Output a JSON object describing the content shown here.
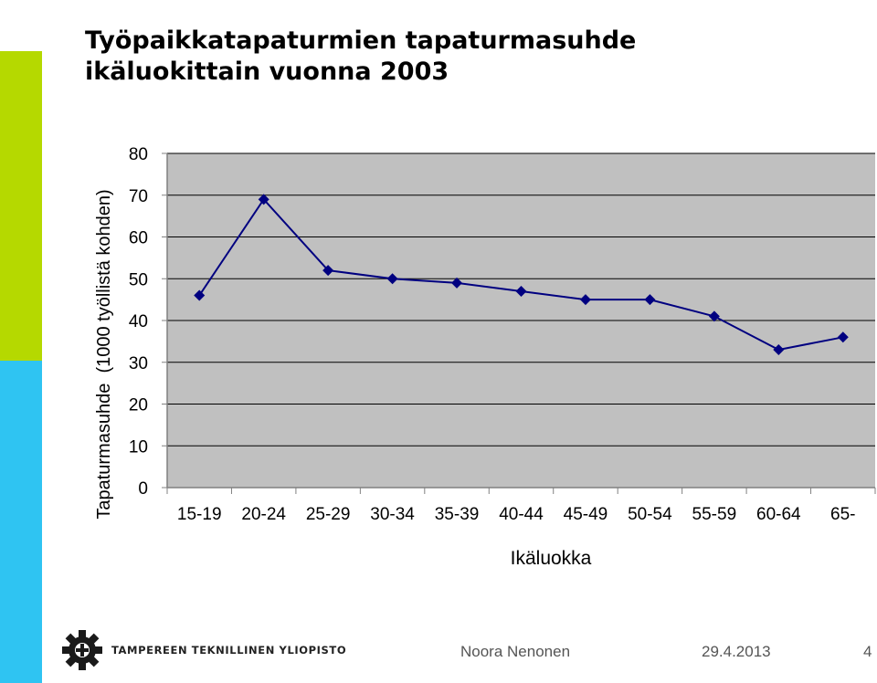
{
  "slide": {
    "title_line1": "Työpaikkatapaturmien tapaturmasuhde",
    "title_line2": "ikäluokittain vuonna 2003"
  },
  "chart_data": {
    "type": "line",
    "categories": [
      "15-19",
      "20-24",
      "25-29",
      "30-34",
      "35-39",
      "40-44",
      "45-49",
      "50-54",
      "55-59",
      "60-64",
      "65-"
    ],
    "values": [
      46,
      69,
      52,
      50,
      49,
      47,
      45,
      45,
      41,
      33,
      36
    ],
    "ylim": [
      0,
      80
    ],
    "yticks": [
      0,
      10,
      20,
      30,
      40,
      50,
      60,
      70,
      80
    ],
    "xlabel": "Ikäluokka",
    "ylabel": "Tapaturmasuhde  (1000 työllistä kohden)",
    "grid": true,
    "legend": "none",
    "plot_bg": "#c0c0c0",
    "line_color": "#000080"
  },
  "footer": {
    "organization": "TAMPEREEN TEKNILLINEN YLIOPISTO",
    "author": "Noora Nenonen",
    "date": "29.4.2013",
    "page": "4",
    "logo_icon": "gear-logo-icon"
  },
  "colors": {
    "side_green": "#b5d900",
    "side_blue": "#2fc4f2"
  }
}
